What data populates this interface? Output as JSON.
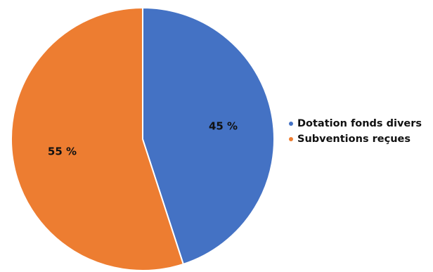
{
  "chart_data": {
    "type": "pie",
    "title": "",
    "slices": [
      {
        "label": "Dotation fonds divers",
        "value": 45,
        "value_label": "45 %",
        "color": "#4472C4"
      },
      {
        "label": "Subventions reçues",
        "value": 55,
        "value_label": "55 %",
        "color": "#ED7D31"
      }
    ],
    "start_angle_deg": 0,
    "direction": "clockwise",
    "legend": {
      "position": "right"
    },
    "slice_border_color": "#ffffff"
  }
}
